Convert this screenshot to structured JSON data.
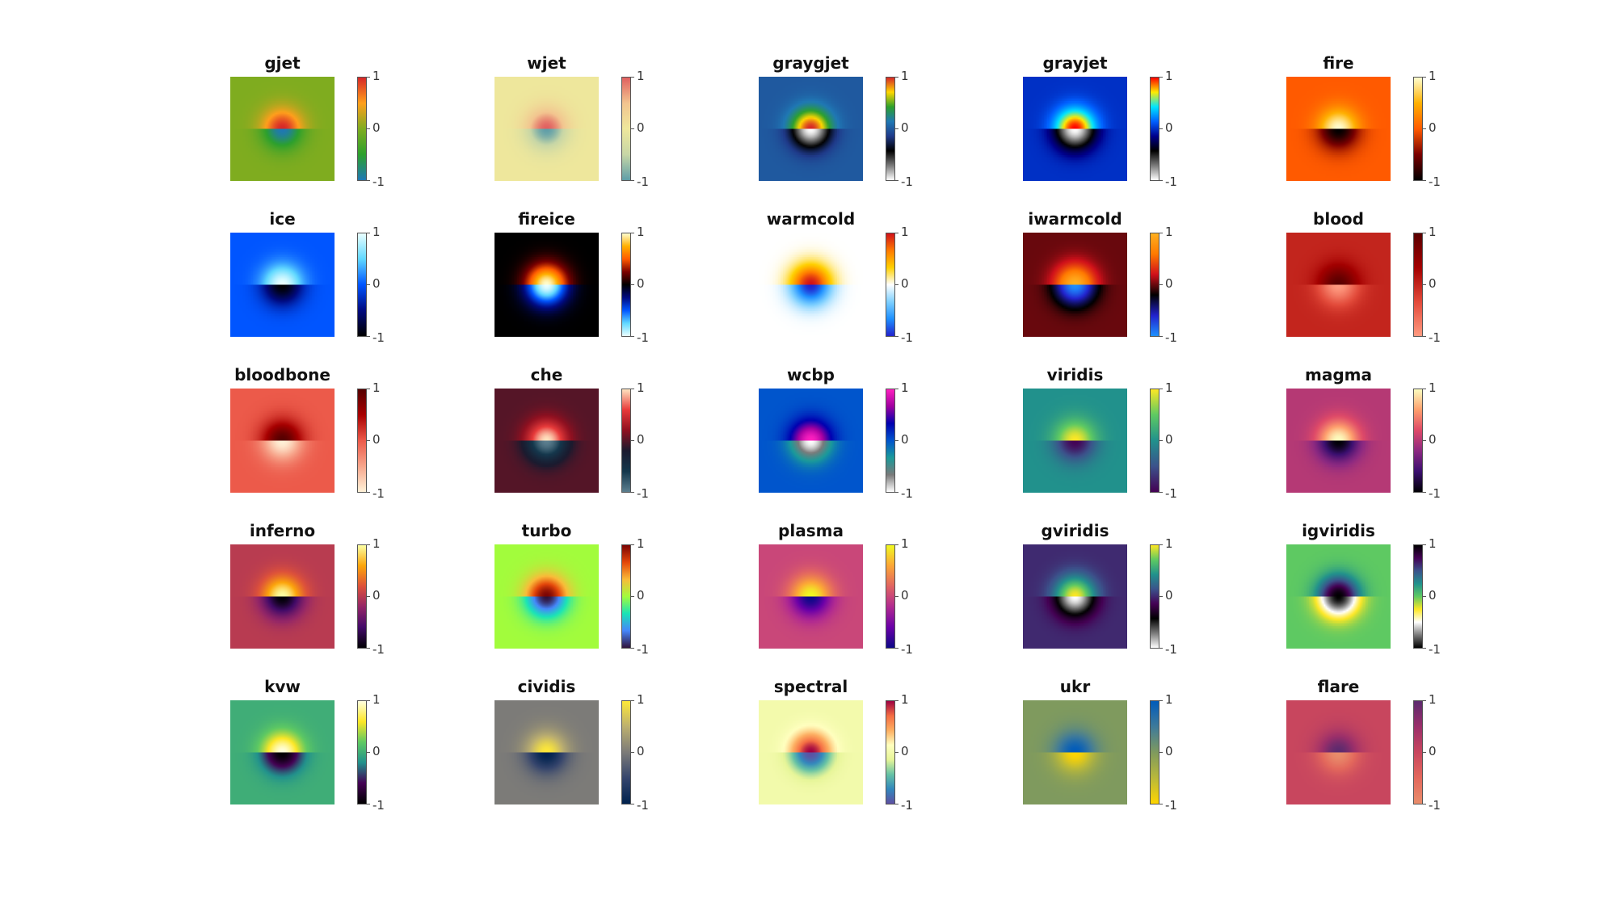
{
  "chart_data": {
    "type": "heatmap",
    "clim": [
      -1,
      1
    ],
    "colorbar_ticks": [
      "1",
      "0",
      "-1"
    ],
    "panels": [
      {
        "title": "gjet",
        "colormap": [
          "#1f78b4",
          "#2ca02c",
          "#7fac1f",
          "#ff9f1c",
          "#d62728"
        ]
      },
      {
        "title": "wjet",
        "colormap": [
          "#5f9ea8",
          "#c7d6a6",
          "#eee79c",
          "#f2c48f",
          "#e06060"
        ]
      },
      {
        "title": "graygjet",
        "colormap": [
          "#ffffff",
          "#7a7a7a",
          "#000000",
          "#1f3a8a",
          "#1f78b4",
          "#2ca02c",
          "#ffd700",
          "#d62728"
        ]
      },
      {
        "title": "grayjet",
        "colormap": [
          "#ffffff",
          "#7a7a7a",
          "#000000",
          "#00008b",
          "#0060ff",
          "#00e5ff",
          "#ffea00",
          "#ff0000"
        ]
      },
      {
        "title": "fire",
        "colormap": [
          "#000000",
          "#7a0000",
          "#ff5a00",
          "#ffb000",
          "#fffdd0"
        ]
      },
      {
        "title": "ice",
        "colormap": [
          "#000000",
          "#000a80",
          "#0055ff",
          "#60d8ff",
          "#eaffff"
        ]
      },
      {
        "title": "fireice",
        "colormap": [
          "#eaffff",
          "#60d8ff",
          "#0055ff",
          "#000a80",
          "#000000",
          "#7a0000",
          "#ff5a00",
          "#ffb000",
          "#fffdd0"
        ]
      },
      {
        "title": "warmcold",
        "colormap": [
          "#2222cc",
          "#1e90ff",
          "#7fd0ff",
          "#ffffff",
          "#ffd000",
          "#ff7a00",
          "#d0101a"
        ]
      },
      {
        "title": "iwarmcold",
        "colormap": [
          "#1e90ff",
          "#2222cc",
          "#000000",
          "#d0101a",
          "#ff7a00",
          "#ffb020"
        ]
      },
      {
        "title": "blood",
        "colormap": [
          "#ff9a80",
          "#e24a3a",
          "#a30000",
          "#5a0000"
        ]
      },
      {
        "title": "bloodbone",
        "colormap": [
          "#fff2d8",
          "#f7a68c",
          "#ec5a4a",
          "#a80000",
          "#550000"
        ]
      },
      {
        "title": "che",
        "colormap": [
          "#5c7f8f",
          "#14374c",
          "#1a1a2e",
          "#8f1020",
          "#e83a3a",
          "#ffe3c0"
        ]
      },
      {
        "title": "wcbp",
        "colormap": [
          "#ffffff",
          "#7a7a7a",
          "#1a9a9a",
          "#0055cc",
          "#0000b0",
          "#a000a0",
          "#ff20c0"
        ]
      },
      {
        "title": "viridis",
        "colormap": [
          "#440154",
          "#3b528b",
          "#21918c",
          "#5ec962",
          "#fde725"
        ]
      },
      {
        "title": "magma",
        "colormap": [
          "#000004",
          "#3b0f70",
          "#8c2981",
          "#de4968",
          "#fe9f6d",
          "#fcfdbf"
        ]
      },
      {
        "title": "inferno",
        "colormap": [
          "#000004",
          "#420a68",
          "#932667",
          "#dd513a",
          "#fca50a",
          "#fcffa4"
        ]
      },
      {
        "title": "turbo",
        "colormap": [
          "#30123b",
          "#4686fb",
          "#1ae4b6",
          "#a2fc3c",
          "#fabb39",
          "#e4460a",
          "#7a0403"
        ]
      },
      {
        "title": "plasma",
        "colormap": [
          "#0d0887",
          "#6a00a8",
          "#b12a90",
          "#e16462",
          "#fca636",
          "#f0f921"
        ]
      },
      {
        "title": "gviridis",
        "colormap": [
          "#ffffff",
          "#7a7a7a",
          "#000000",
          "#440154",
          "#3b528b",
          "#21918c",
          "#5ec962",
          "#fde725"
        ]
      },
      {
        "title": "igviridis",
        "colormap": [
          "#000000",
          "#7a7a7a",
          "#ffffff",
          "#fde725",
          "#5ec962",
          "#21918c",
          "#3b528b",
          "#440154",
          "#000000"
        ]
      },
      {
        "title": "kvw",
        "colormap": [
          "#000000",
          "#440154",
          "#21918c",
          "#5ec962",
          "#fde725",
          "#ffffe0"
        ]
      },
      {
        "title": "cividis",
        "colormap": [
          "#00224e",
          "#35456c",
          "#7c7b78",
          "#bcaf6f",
          "#fee838"
        ]
      },
      {
        "title": "spectral",
        "colormap": [
          "#5e4fa2",
          "#3288bd",
          "#66c2a5",
          "#e6f598",
          "#ffffbf",
          "#fdae61",
          "#f46d43",
          "#9e0142"
        ]
      },
      {
        "title": "ukr",
        "colormap": [
          "#ffd500",
          "#b9b83a",
          "#7f9a5e",
          "#3f7a9a",
          "#005bbb"
        ]
      },
      {
        "title": "flare",
        "colormap": [
          "#e98d6b",
          "#e3685c",
          "#c8465e",
          "#9b2f6a",
          "#5c2a6e"
        ]
      }
    ]
  }
}
